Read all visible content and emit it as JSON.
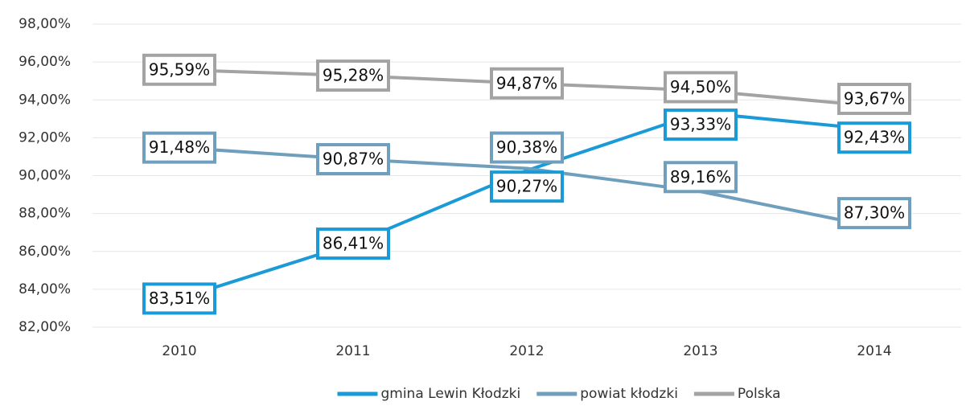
{
  "chart_data": {
    "type": "line",
    "categories": [
      "2010",
      "2011",
      "2012",
      "2013",
      "2014"
    ],
    "series": [
      {
        "name": "gmina Lewin Kłodzki",
        "color": "#1a9ad6",
        "values": [
          83.51,
          86.41,
          90.27,
          93.33,
          92.43
        ],
        "value_labels": [
          "83,51%",
          "86,41%",
          "90,27%",
          "93,33%",
          "92,43%"
        ]
      },
      {
        "name": "powiat kłodzki",
        "color": "#6f9fbd",
        "values": [
          91.48,
          90.87,
          90.38,
          89.16,
          87.3
        ],
        "value_labels": [
          "91,48%",
          "90,87%",
          "90,38%",
          "89,16%",
          "87,30%"
        ]
      },
      {
        "name": "Polska",
        "color": "#a3a3a3",
        "values": [
          95.59,
          95.28,
          94.87,
          94.5,
          93.67
        ],
        "value_labels": [
          "95,59%",
          "95,28%",
          "94,87%",
          "94,50%",
          "93,67%"
        ]
      }
    ],
    "ylim": [
      82,
      98
    ],
    "yticks": [
      {
        "value": 82,
        "label": "82,00%"
      },
      {
        "value": 84,
        "label": "84,00%"
      },
      {
        "value": 86,
        "label": "86,00%"
      },
      {
        "value": 88,
        "label": "88,00%"
      },
      {
        "value": 90,
        "label": "90,00%"
      },
      {
        "value": 92,
        "label": "92,00%"
      },
      {
        "value": 94,
        "label": "94,00%"
      },
      {
        "value": 96,
        "label": "96,00%"
      },
      {
        "value": 98,
        "label": "98,00%"
      }
    ],
    "grid": true,
    "legend": "bottom"
  }
}
